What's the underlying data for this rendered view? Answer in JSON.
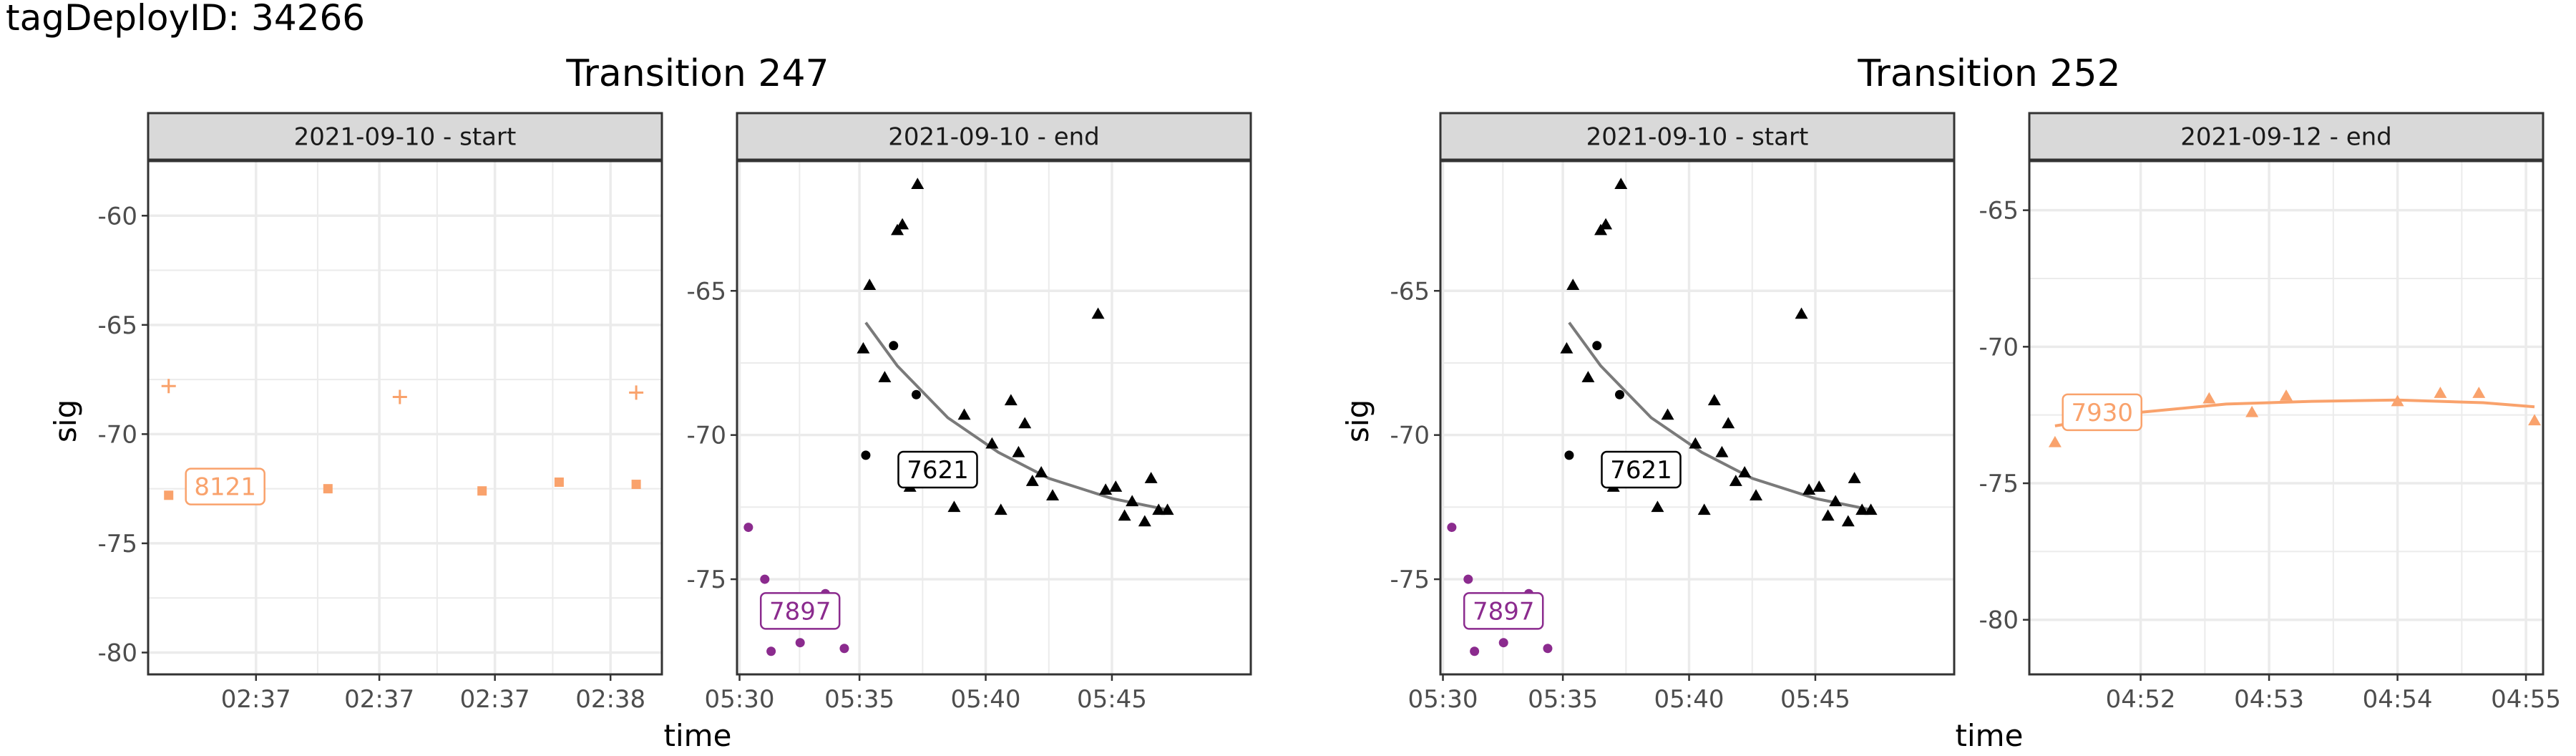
{
  "figure": {
    "header": "tagDeployID: 34266",
    "xlabel": "time",
    "ylabel": "sig"
  },
  "colors": {
    "orange": "#f9a26c",
    "purple": "#8b2b8e",
    "black": "#000000",
    "trend_gray": "#7a7a7a",
    "strip_bg": "#d9d9d9",
    "grid": "#ebebeb"
  },
  "transitions": [
    {
      "title": "Transition 247",
      "panels": [
        {
          "strip": "2021-09-10 - start",
          "xlim": [
            0,
            100
          ],
          "ylim": [
            -81,
            -57.5
          ],
          "xticks": [
            {
              "v": 21,
              "label": "02:37"
            },
            {
              "v": 45,
              "label": "02:37"
            },
            {
              "v": 67.5,
              "label": "02:37"
            },
            {
              "v": 90,
              "label": "02:38"
            }
          ],
          "yticks": [
            -60,
            -65,
            -70,
            -75,
            -80
          ],
          "chart_data": {
            "type": "scatter",
            "series": [
              {
                "color": "orange",
                "shape": "plus",
                "points": [
                  [
                    4,
                    -67.8
                  ],
                  [
                    49,
                    -68.3
                  ],
                  [
                    95,
                    -68.1
                  ]
                ]
              },
              {
                "color": "orange",
                "shape": "square",
                "points": [
                  [
                    4,
                    -72.8
                  ],
                  [
                    35,
                    -72.5
                  ],
                  [
                    65,
                    -72.6
                  ],
                  [
                    80,
                    -72.2
                  ],
                  [
                    95,
                    -72.3
                  ]
                ]
              }
            ],
            "labels": [
              {
                "text": "8121",
                "x": 15,
                "y": -72.4,
                "color": "orange"
              }
            ]
          }
        },
        {
          "strip": "2021-09-10 - end",
          "xlim": [
            5.3,
            46
          ],
          "ylim": [
            -78.3,
            -60.5
          ],
          "xticks": [
            {
              "v": 5.5,
              "label": "05:30"
            },
            {
              "v": 15,
              "label": "05:35"
            },
            {
              "v": 25,
              "label": "05:40"
            },
            {
              "v": 35,
              "label": "05:45"
            }
          ],
          "yticks": [
            -65,
            -70,
            -75
          ],
          "chart_data": {
            "type": "scatter",
            "series": [
              {
                "color": "purple",
                "shape": "circle",
                "points": [
                  [
                    6.2,
                    -73.2
                  ],
                  [
                    7.5,
                    -75
                  ],
                  [
                    8,
                    -77.5
                  ],
                  [
                    10.3,
                    -77.2
                  ],
                  [
                    12.3,
                    -75.5
                  ],
                  [
                    13.8,
                    -77.4
                  ]
                ]
              },
              {
                "color": "black",
                "shape": "circle",
                "points": [
                  [
                    15.5,
                    -70.7
                  ],
                  [
                    17.7,
                    -66.9
                  ],
                  [
                    19.5,
                    -68.6
                  ]
                ]
              },
              {
                "color": "black",
                "shape": "triangle",
                "points": [
                  [
                    15.3,
                    -67
                  ],
                  [
                    15.8,
                    -64.8
                  ],
                  [
                    17,
                    -68
                  ],
                  [
                    18,
                    -62.9
                  ],
                  [
                    18.4,
                    -62.7
                  ],
                  [
                    19,
                    -71.8
                  ],
                  [
                    19.6,
                    -61.3
                  ],
                  [
                    22.5,
                    -72.5
                  ],
                  [
                    23.3,
                    -69.3
                  ],
                  [
                    23.8,
                    -71.4
                  ],
                  [
                    25.5,
                    -70.3
                  ],
                  [
                    26.2,
                    -72.6
                  ],
                  [
                    27,
                    -68.8
                  ],
                  [
                    27.6,
                    -70.6
                  ],
                  [
                    28.1,
                    -69.6
                  ],
                  [
                    28.7,
                    -71.6
                  ],
                  [
                    29.4,
                    -71.3
                  ],
                  [
                    30.3,
                    -72.1
                  ],
                  [
                    33.9,
                    -65.8
                  ],
                  [
                    34.5,
                    -71.9
                  ],
                  [
                    35.3,
                    -71.8
                  ],
                  [
                    36,
                    -72.8
                  ],
                  [
                    36.6,
                    -72.3
                  ],
                  [
                    37.6,
                    -73.0
                  ],
                  [
                    38.1,
                    -71.5
                  ],
                  [
                    38.7,
                    -72.6
                  ],
                  [
                    39.4,
                    -72.6
                  ]
                ]
              }
            ],
            "trend": {
              "color": "trend_gray",
              "points": [
                [
                  15.5,
                  -66.1
                ],
                [
                  18,
                  -67.6
                ],
                [
                  22,
                  -69.4
                ],
                [
                  26,
                  -70.6
                ],
                [
                  30,
                  -71.5
                ],
                [
                  35,
                  -72.2
                ],
                [
                  39.5,
                  -72.6
                ]
              ]
            },
            "labels": [
              {
                "text": "7897",
                "x": 10.3,
                "y": -76.1,
                "color": "purple"
              },
              {
                "text": "7621",
                "x": 21.2,
                "y": -71.2,
                "color": "black"
              }
            ]
          }
        }
      ]
    },
    {
      "title": "Transition 252",
      "panels": [
        {
          "strip": "2021-09-10 - start",
          "xlim": [
            5.3,
            46
          ],
          "ylim": [
            -78.3,
            -60.5
          ],
          "xticks": [
            {
              "v": 5.5,
              "label": "05:30"
            },
            {
              "v": 15,
              "label": "05:35"
            },
            {
              "v": 25,
              "label": "05:40"
            },
            {
              "v": 35,
              "label": "05:45"
            }
          ],
          "yticks": [
            -65,
            -70,
            -75
          ],
          "chart_data": {
            "type": "scatter",
            "series": [
              {
                "color": "purple",
                "shape": "circle",
                "points": [
                  [
                    6.2,
                    -73.2
                  ],
                  [
                    7.5,
                    -75
                  ],
                  [
                    8,
                    -77.5
                  ],
                  [
                    10.3,
                    -77.2
                  ],
                  [
                    12.3,
                    -75.5
                  ],
                  [
                    13.8,
                    -77.4
                  ]
                ]
              },
              {
                "color": "black",
                "shape": "circle",
                "points": [
                  [
                    15.5,
                    -70.7
                  ],
                  [
                    17.7,
                    -66.9
                  ],
                  [
                    19.5,
                    -68.6
                  ]
                ]
              },
              {
                "color": "black",
                "shape": "triangle",
                "points": [
                  [
                    15.3,
                    -67
                  ],
                  [
                    15.8,
                    -64.8
                  ],
                  [
                    17,
                    -68
                  ],
                  [
                    18,
                    -62.9
                  ],
                  [
                    18.4,
                    -62.7
                  ],
                  [
                    19,
                    -71.8
                  ],
                  [
                    19.6,
                    -61.3
                  ],
                  [
                    22.5,
                    -72.5
                  ],
                  [
                    23.3,
                    -69.3
                  ],
                  [
                    23.8,
                    -71.4
                  ],
                  [
                    25.5,
                    -70.3
                  ],
                  [
                    26.2,
                    -72.6
                  ],
                  [
                    27,
                    -68.8
                  ],
                  [
                    27.6,
                    -70.6
                  ],
                  [
                    28.1,
                    -69.6
                  ],
                  [
                    28.7,
                    -71.6
                  ],
                  [
                    29.4,
                    -71.3
                  ],
                  [
                    30.3,
                    -72.1
                  ],
                  [
                    33.9,
                    -65.8
                  ],
                  [
                    34.5,
                    -71.9
                  ],
                  [
                    35.3,
                    -71.8
                  ],
                  [
                    36,
                    -72.8
                  ],
                  [
                    36.6,
                    -72.3
                  ],
                  [
                    37.6,
                    -73.0
                  ],
                  [
                    38.1,
                    -71.5
                  ],
                  [
                    38.7,
                    -72.6
                  ],
                  [
                    39.4,
                    -72.6
                  ]
                ]
              }
            ],
            "trend": {
              "color": "trend_gray",
              "points": [
                [
                  15.5,
                  -66.1
                ],
                [
                  18,
                  -67.6
                ],
                [
                  22,
                  -69.4
                ],
                [
                  26,
                  -70.6
                ],
                [
                  30,
                  -71.5
                ],
                [
                  35,
                  -72.2
                ],
                [
                  39.5,
                  -72.6
                ]
              ]
            },
            "labels": [
              {
                "text": "7897",
                "x": 10.3,
                "y": -76.1,
                "color": "purple"
              },
              {
                "text": "7621",
                "x": 21.2,
                "y": -71.2,
                "color": "black"
              }
            ]
          }
        },
        {
          "strip": "2021-09-12 - end",
          "xlim": [
            4.7,
            10.7
          ],
          "ylim": [
            -82,
            -63.2
          ],
          "xticks": [
            {
              "v": 6,
              "label": "04:52"
            },
            {
              "v": 7.5,
              "label": "04:53"
            },
            {
              "v": 9,
              "label": "04:54"
            },
            {
              "v": 10.5,
              "label": "04:55"
            }
          ],
          "yticks": [
            -65,
            -70,
            -75,
            -80
          ],
          "chart_data": {
            "type": "scatter",
            "series": [
              {
                "color": "orange",
                "shape": "triangle",
                "points": [
                  [
                    5.0,
                    -73.5
                  ],
                  [
                    6.8,
                    -71.9
                  ],
                  [
                    7.3,
                    -72.4
                  ],
                  [
                    7.7,
                    -71.8
                  ],
                  [
                    9.0,
                    -72.0
                  ],
                  [
                    9.5,
                    -71.7
                  ],
                  [
                    9.95,
                    -71.7
                  ],
                  [
                    10.6,
                    -72.7
                  ]
                ]
              }
            ],
            "trend": {
              "color": "orange",
              "points": [
                [
                  5.0,
                  -72.9
                ],
                [
                  6,
                  -72.4
                ],
                [
                  7,
                  -72.1
                ],
                [
                  8,
                  -72.0
                ],
                [
                  9,
                  -71.95
                ],
                [
                  10,
                  -72.05
                ],
                [
                  10.6,
                  -72.2
                ]
              ]
            },
            "labels": [
              {
                "text": "7930",
                "x": 5.55,
                "y": -72.4,
                "color": "orange"
              }
            ]
          }
        }
      ]
    }
  ]
}
